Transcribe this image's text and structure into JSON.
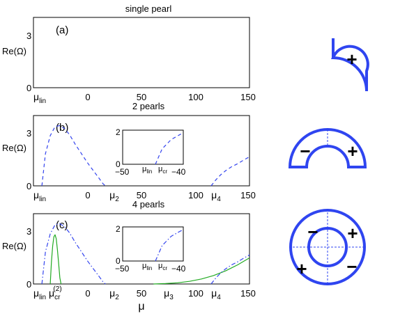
{
  "chart_data": [
    {
      "type": "line",
      "panel_label": "(a)",
      "title": "single pearl",
      "ylabel": "Re(Ω)",
      "xlim": [
        -30,
        150
      ],
      "ylim": [
        0,
        3.5
      ],
      "ytick_labels": [
        "0",
        "3"
      ],
      "xtick_labels": [
        "μ_lin",
        "0",
        "50",
        "100",
        "150"
      ],
      "series": []
    },
    {
      "type": "line",
      "panel_label": "(b)",
      "title": "2 pearls",
      "ylabel": "Re(Ω)",
      "xlim": [
        -30,
        150
      ],
      "ylim": [
        0,
        3.5
      ],
      "ytick_labels": [
        "0",
        "3"
      ],
      "xtick_labels": [
        "μ_lin",
        "0",
        "μ_2",
        "50",
        "100",
        "μ_4",
        "150"
      ],
      "series": [
        {
          "style": "dashed",
          "color": "#3344ee",
          "x": [
            -23,
            -20,
            -16,
            -12,
            -8,
            -4,
            0,
            5,
            10,
            15,
            20,
            25,
            28,
            30
          ],
          "y": [
            0,
            1.6,
            2.5,
            2.95,
            3.0,
            2.85,
            2.55,
            2.05,
            1.6,
            1.15,
            0.75,
            0.35,
            0.1,
            0
          ]
        },
        {
          "style": "dashed",
          "color": "#3344ee",
          "x": [
            118,
            122,
            126,
            130,
            135,
            140,
            145,
            150
          ],
          "y": [
            0,
            0.3,
            0.55,
            0.75,
            0.95,
            1.1,
            1.28,
            1.45
          ]
        }
      ],
      "inset": {
        "xlim": [
          -50,
          -40
        ],
        "ylim": [
          0,
          2
        ],
        "xtick_labels": [
          "−50",
          "μ_lin",
          "μ_cr",
          "−40"
        ],
        "ytick_labels": [
          "0",
          "2"
        ],
        "series": [
          {
            "style": "dashed",
            "color": "#3344ee",
            "x": [
              -44.6,
              -43.5,
              -42,
              -40.5,
              -40
            ],
            "y": [
              0,
              0.9,
              1.45,
              1.75,
              1.82
            ]
          }
        ]
      }
    },
    {
      "type": "line",
      "panel_label": "(c)",
      "title": "4 pearls",
      "ylabel": "Re(Ω)",
      "xlabel": "μ",
      "xlim": [
        -30,
        150
      ],
      "ylim": [
        0,
        3.5
      ],
      "ytick_labels": [
        "0",
        "3"
      ],
      "xtick_labels": [
        "μ_lin",
        "μ_cr^(2)",
        "0",
        "μ_2",
        "50",
        "μ_3",
        "100",
        "μ_4",
        "150"
      ],
      "series": [
        {
          "style": "dashdot",
          "color": "#3344ee",
          "x": [
            -23,
            -20,
            -16,
            -12,
            -8,
            -4,
            0,
            5,
            10,
            15,
            20,
            25,
            28,
            30
          ],
          "y": [
            0,
            1.6,
            2.5,
            2.95,
            3.0,
            2.85,
            2.55,
            2.05,
            1.6,
            1.15,
            0.75,
            0.35,
            0.1,
            0
          ]
        },
        {
          "style": "solid",
          "color": "#22aa22",
          "x": [
            -16,
            -15,
            -14,
            -13,
            -12,
            -11,
            -10,
            -9,
            -8,
            -7
          ],
          "y": [
            0,
            1.1,
            1.9,
            2.35,
            2.45,
            2.25,
            1.7,
            1.0,
            0.3,
            0
          ]
        },
        {
          "style": "solid",
          "color": "#22aa22",
          "x": [
            70,
            80,
            90,
            100,
            110,
            120,
            130,
            140,
            150
          ],
          "y": [
            0,
            0.02,
            0.06,
            0.13,
            0.25,
            0.42,
            0.65,
            0.95,
            1.3
          ]
        },
        {
          "style": "dashdot",
          "color": "#3344ee",
          "x": [
            118,
            122,
            126,
            130,
            135,
            140,
            145,
            150
          ],
          "y": [
            0,
            0.3,
            0.55,
            0.75,
            0.95,
            1.1,
            1.28,
            1.45
          ]
        }
      ],
      "inset": {
        "xlim": [
          -50,
          -40
        ],
        "ylim": [
          0,
          2
        ],
        "xtick_labels": [
          "−50",
          "μ_lin",
          "μ_cr",
          "−40"
        ],
        "ytick_labels": [
          "0",
          "2"
        ],
        "series": [
          {
            "style": "dashdot",
            "color": "#3344ee",
            "x": [
              -44.6,
              -43.5,
              -42,
              -40.5,
              -40
            ],
            "y": [
              0,
              0.9,
              1.45,
              1.75,
              1.82
            ]
          }
        ]
      }
    }
  ],
  "schematics": [
    {
      "name": "single pearl",
      "signs": [
        "+"
      ]
    },
    {
      "name": "2 pearls",
      "signs": [
        "−",
        "+"
      ]
    },
    {
      "name": "4 pearls",
      "signs": [
        "−",
        "+",
        "+",
        "−"
      ]
    }
  ]
}
